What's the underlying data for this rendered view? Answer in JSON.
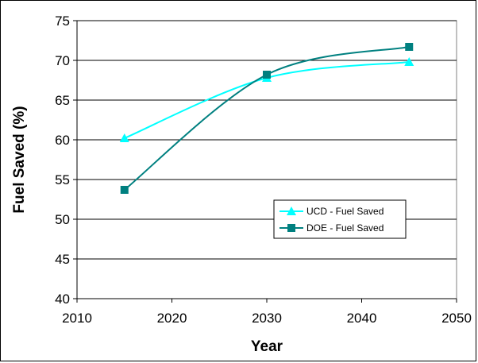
{
  "chart_data": {
    "type": "line",
    "xlabel": "Year",
    "ylabel": "Fuel Saved (%)",
    "xlim": [
      2010,
      2050
    ],
    "ylim": [
      40,
      75
    ],
    "xticks": [
      2010,
      2020,
      2030,
      2040,
      2050
    ],
    "yticks": [
      40,
      45,
      50,
      55,
      60,
      65,
      70,
      75
    ],
    "grid": "horizontal",
    "legend_position": "lower-right",
    "series": [
      {
        "name": "UCD - Fuel Saved",
        "color": "#00FFFF",
        "marker": "triangle",
        "x": [
          2015,
          2030,
          2045
        ],
        "values": [
          60.2,
          67.8,
          69.8
        ]
      },
      {
        "name": "DOE - Fuel Saved",
        "color": "#008080",
        "marker": "square",
        "x": [
          2015,
          2030,
          2045
        ],
        "values": [
          53.7,
          68.2,
          71.7
        ]
      }
    ]
  }
}
